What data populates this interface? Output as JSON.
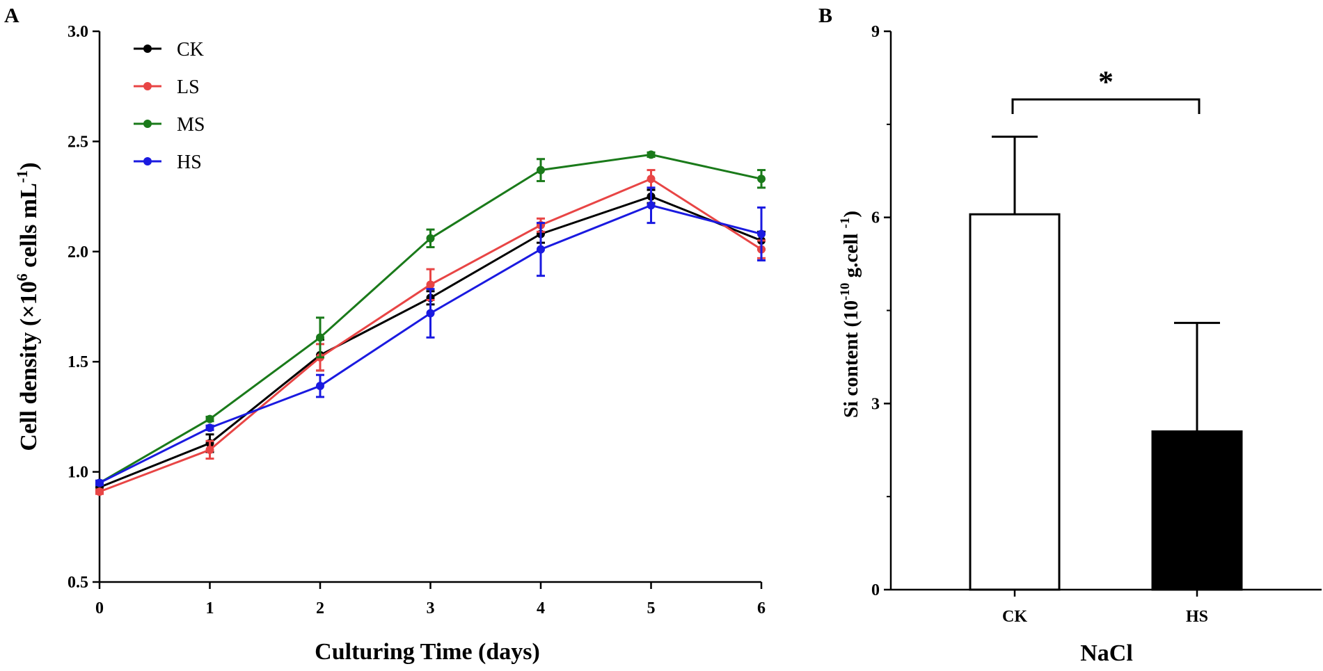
{
  "chart_data": [
    {
      "panel_label": "A",
      "type": "line",
      "xlabel": "Culturing Time (days)",
      "ylabel_prefix": "Cell density (×10",
      "ylabel_sup1": "6",
      "ylabel_mid": " cells mL",
      "ylabel_sup2": "-1",
      "ylabel_suffix": ")",
      "x": [
        0,
        1,
        2,
        3,
        4,
        5,
        6
      ],
      "xticks": [
        "0",
        "1",
        "2",
        "3",
        "4",
        "5",
        "6"
      ],
      "yticks": [
        "0.5",
        "1.0",
        "1.5",
        "2.0",
        "2.5",
        "3.0"
      ],
      "xlim": [
        0,
        6
      ],
      "ylim": [
        0.5,
        3.0
      ],
      "legend_position": "top-left",
      "series": [
        {
          "name": "CK",
          "color": "#000000",
          "values": [
            0.93,
            1.13,
            1.53,
            1.79,
            2.08,
            2.25,
            2.05
          ],
          "errors": [
            0.02,
            0.04,
            0.07,
            0.03,
            0.04,
            0.03,
            0.04
          ]
        },
        {
          "name": "LS",
          "color": "#e84545",
          "values": [
            0.91,
            1.1,
            1.52,
            1.85,
            2.12,
            2.33,
            2.01
          ],
          "errors": [
            0.01,
            0.04,
            0.06,
            0.07,
            0.03,
            0.04,
            0.04
          ]
        },
        {
          "name": "MS",
          "color": "#1a7a1a",
          "values": [
            0.95,
            1.24,
            1.61,
            2.06,
            2.37,
            2.44,
            2.33
          ],
          "errors": [
            0.01,
            0.01,
            0.09,
            0.04,
            0.05,
            0.01,
            0.04
          ]
        },
        {
          "name": "HS",
          "color": "#1a1ae0",
          "values": [
            0.95,
            1.2,
            1.39,
            1.72,
            2.01,
            2.21,
            2.08
          ],
          "errors": [
            0.01,
            0.01,
            0.05,
            0.11,
            0.12,
            0.08,
            0.12
          ]
        }
      ]
    },
    {
      "panel_label": "B",
      "type": "bar",
      "xlabel": "NaCl",
      "ylabel_prefix": "Si content (10",
      "ylabel_sup1": "-10",
      "ylabel_mid": " g.cell ",
      "ylabel_sup2": "-1",
      "ylabel_suffix": ")",
      "categories": [
        "CK",
        "HS"
      ],
      "values": [
        6.05,
        2.55
      ],
      "errors": [
        1.25,
        1.75
      ],
      "bar_fill": [
        "#ffffff",
        "#000000"
      ],
      "yticks": [
        "0",
        "3",
        "6",
        "9"
      ],
      "ylim": [
        0,
        9
      ],
      "significance": "*"
    }
  ]
}
